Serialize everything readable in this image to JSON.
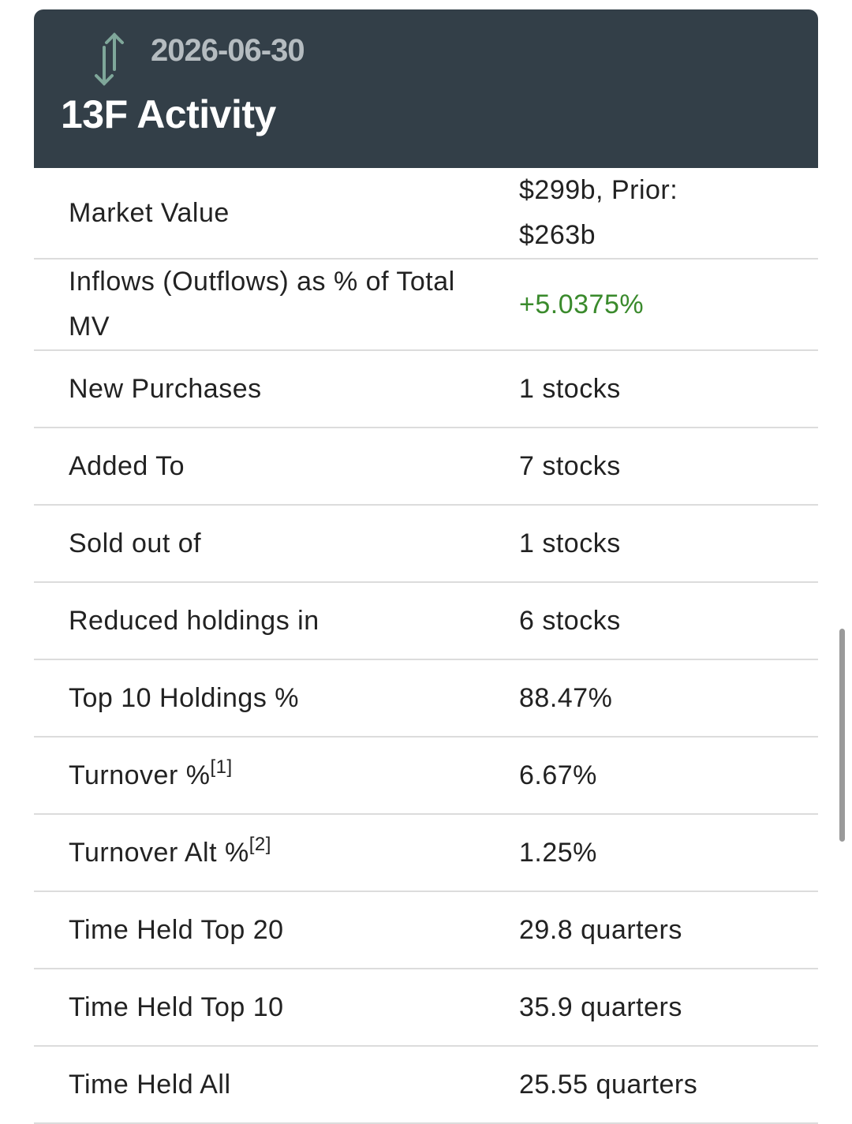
{
  "header": {
    "date": "2026-06-30",
    "title": "13F Activity"
  },
  "table": {
    "rows": [
      {
        "label": "Market Value",
        "value": "$299b, Prior: $263b"
      },
      {
        "label": "Inflows (Outflows) as % of Total MV",
        "value": "+5.0375%",
        "value_color": "#3a8a2c"
      },
      {
        "label": "New Purchases",
        "value": "1 stocks"
      },
      {
        "label": "Added To",
        "value": "7 stocks"
      },
      {
        "label": "Sold out of",
        "value": "1 stocks"
      },
      {
        "label": "Reduced holdings in",
        "value": "6 stocks"
      },
      {
        "label": "Top 10 Holdings %",
        "value": "88.47%"
      },
      {
        "label": "Turnover %",
        "note": "[1]",
        "value": "6.67%"
      },
      {
        "label": "Turnover Alt %",
        "note": "[2]",
        "value": "1.25%"
      },
      {
        "label": "Time Held Top 20",
        "value": "29.8 quarters"
      },
      {
        "label": "Time Held Top 10",
        "value": "35.9 quarters"
      },
      {
        "label": "Time Held All",
        "value": "25.55 quarters"
      }
    ]
  }
}
